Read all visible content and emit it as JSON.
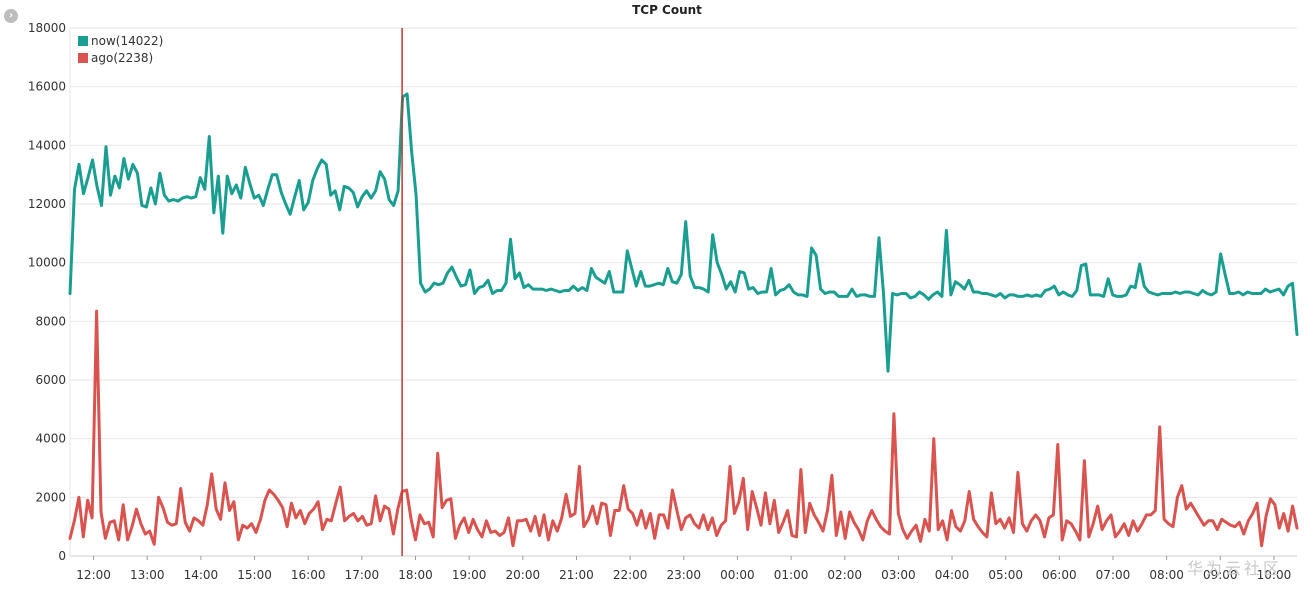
{
  "chart_data": {
    "type": "line",
    "title": "TCP Count",
    "ylim": [
      0,
      18000
    ],
    "yticks": [
      0,
      2000,
      4000,
      6000,
      8000,
      10000,
      12000,
      14000,
      16000,
      18000
    ],
    "xticks": [
      "12:00",
      "13:00",
      "14:00",
      "15:00",
      "16:00",
      "17:00",
      "18:00",
      "19:00",
      "20:00",
      "21:00",
      "22:00",
      "23:00",
      "00:00",
      "01:00",
      "02:00",
      "03:00",
      "04:00",
      "05:00",
      "06:00",
      "07:00",
      "08:00",
      "09:00",
      "10:00"
    ],
    "xtick_hours": [
      12,
      13,
      14,
      15,
      16,
      17,
      18,
      19,
      20,
      21,
      22,
      23,
      24,
      25,
      26,
      27,
      28,
      29,
      30,
      31,
      32,
      33,
      34
    ],
    "x_start_hour": 11.56,
    "x_end_hour": 34.43,
    "marker_hour": 17.75,
    "legend": [
      "now(14022)",
      "ago(2238)"
    ],
    "grid": true,
    "series": [
      {
        "name": "now(14022)",
        "color": "#1a9e92",
        "values": [
          8950,
          12500,
          13350,
          12350,
          12900,
          13500,
          12600,
          11950,
          13950,
          12300,
          12950,
          12550,
          13550,
          12850,
          13350,
          13050,
          11950,
          11900,
          12550,
          12000,
          13050,
          12300,
          12100,
          12150,
          12100,
          12200,
          12250,
          12200,
          12250,
          12900,
          12500,
          14300,
          11700,
          12950,
          11000,
          12950,
          12350,
          12650,
          12200,
          13250,
          12700,
          12200,
          12300,
          11950,
          12500,
          13000,
          13000,
          12400,
          12000,
          11650,
          12250,
          12800,
          11800,
          12050,
          12800,
          13200,
          13500,
          13350,
          12300,
          12450,
          11800,
          12600,
          12550,
          12400,
          11900,
          12250,
          12450,
          12200,
          12450,
          13100,
          12850,
          12150,
          11950,
          12450,
          15650,
          15750,
          13800,
          12300,
          9300,
          9000,
          9100,
          9300,
          9250,
          9300,
          9650,
          9850,
          9500,
          9200,
          9250,
          9750,
          8950,
          9150,
          9200,
          9400,
          8950,
          9050,
          9050,
          9300,
          10800,
          9450,
          9650,
          9150,
          9250,
          9100,
          9100,
          9100,
          9050,
          9100,
          9050,
          9000,
          9050,
          9050,
          9200,
          9050,
          9150,
          9050,
          9800,
          9500,
          9400,
          9300,
          9700,
          9000,
          9000,
          9000,
          10400,
          9800,
          9200,
          9700,
          9200,
          9200,
          9250,
          9300,
          9250,
          9800,
          9350,
          9300,
          9600,
          11400,
          9550,
          9150,
          9150,
          9100,
          9000,
          10950,
          10000,
          9600,
          9100,
          9350,
          9000,
          9700,
          9650,
          9100,
          9150,
          8950,
          9000,
          9000,
          9800,
          8900,
          9050,
          9100,
          9250,
          9000,
          8900,
          8900,
          8850,
          10500,
          10250,
          9100,
          8950,
          9000,
          9000,
          8850,
          8850,
          8850,
          9100,
          8850,
          8900,
          8900,
          8850,
          8850,
          10850,
          8950,
          6300,
          8950,
          8900,
          8950,
          8950,
          8800,
          8850,
          9000,
          8900,
          8750,
          8900,
          9000,
          8850,
          11100,
          8900,
          9350,
          9250,
          9100,
          9400,
          9000,
          9000,
          8950,
          8950,
          8900,
          8850,
          8950,
          8800,
          8900,
          8900,
          8850,
          8850,
          8900,
          8850,
          8900,
          8850,
          9050,
          9100,
          9200,
          8900,
          9000,
          8900,
          8850,
          9050,
          9900,
          9950,
          8900,
          8900,
          8900,
          8850,
          9450,
          8900,
          8850,
          8850,
          8900,
          9200,
          9150,
          9950,
          9200,
          9000,
          8950,
          8900,
          8950,
          8950,
          8950,
          9000,
          8950,
          9000,
          9000,
          8950,
          8900,
          9050,
          8950,
          8900,
          9000,
          10300,
          9600,
          8950,
          8950,
          9000,
          8900,
          9000,
          8950,
          8950,
          8950,
          9100,
          9000,
          9050,
          9100,
          8900,
          9200,
          9300,
          7550
        ]
      },
      {
        "name": "ago(2238)",
        "color": "#d9534f",
        "values": [
          600,
          1200,
          2000,
          650,
          1900,
          1300,
          8350,
          1500,
          600,
          1150,
          1200,
          550,
          1750,
          550,
          1000,
          1600,
          1100,
          750,
          850,
          400,
          2000,
          1650,
          1150,
          1050,
          1100,
          2300,
          1150,
          850,
          1300,
          1200,
          1050,
          1750,
          2800,
          1600,
          1250,
          2500,
          1550,
          1850,
          550,
          1050,
          950,
          1100,
          800,
          1250,
          1900,
          2250,
          2100,
          1900,
          1650,
          1000,
          1800,
          1300,
          1550,
          1100,
          1450,
          1600,
          1850,
          900,
          1250,
          1200,
          1800,
          2350,
          1200,
          1350,
          1450,
          1200,
          1350,
          1050,
          1100,
          2050,
          1200,
          1700,
          1600,
          750,
          1600,
          2200,
          2250,
          1250,
          550,
          1400,
          1100,
          1150,
          650,
          3500,
          1650,
          1900,
          1950,
          600,
          1050,
          1300,
          800,
          1250,
          900,
          650,
          1200,
          800,
          850,
          700,
          800,
          1300,
          350,
          1200,
          1200,
          1250,
          850,
          1350,
          700,
          1400,
          550,
          1200,
          850,
          1300,
          2100,
          1350,
          1450,
          3050,
          1000,
          1250,
          1700,
          1100,
          1800,
          1750,
          700,
          1550,
          1550,
          2400,
          1600,
          1450,
          1050,
          1550,
          950,
          1450,
          600,
          1400,
          1400,
          950,
          2250,
          1550,
          900,
          1300,
          1400,
          1100,
          950,
          1400,
          900,
          1300,
          700,
          1050,
          1200,
          3050,
          1450,
          1850,
          2650,
          900,
          2200,
          1650,
          1050,
          2150,
          1100,
          1900,
          800,
          1150,
          1550,
          700,
          650,
          2950,
          800,
          1800,
          1400,
          1150,
          850,
          1550,
          2750,
          700,
          1500,
          600,
          1500,
          1150,
          900,
          550,
          1200,
          1550,
          1250,
          1000,
          850,
          750,
          4850,
          1450,
          900,
          600,
          850,
          1050,
          500,
          1250,
          850,
          4000,
          900,
          1200,
          550,
          1550,
          1000,
          850,
          1200,
          2200,
          1250,
          1000,
          800,
          650,
          2150,
          1100,
          1250,
          950,
          1300,
          800,
          2850,
          1100,
          850,
          1200,
          1400,
          1200,
          650,
          1300,
          1400,
          3800,
          550,
          1200,
          1100,
          850,
          550,
          3250,
          650,
          1100,
          1700,
          900,
          1200,
          1400,
          650,
          850,
          1100,
          700,
          1200,
          850,
          1100,
          1400,
          1400,
          1550,
          4400,
          1250,
          1100,
          1000,
          2000,
          2400,
          1600,
          1800,
          1550,
          1300,
          1050,
          1200,
          1200,
          900,
          1250,
          1150,
          1050,
          1000,
          1150,
          750,
          1200,
          1450,
          1800,
          350,
          1350,
          1950,
          1750,
          950,
          1450,
          850,
          1700,
          950
        ]
      }
    ]
  },
  "ui": {
    "collapse_icon": "chevron-right-icon",
    "watermark": "华为云社区"
  }
}
